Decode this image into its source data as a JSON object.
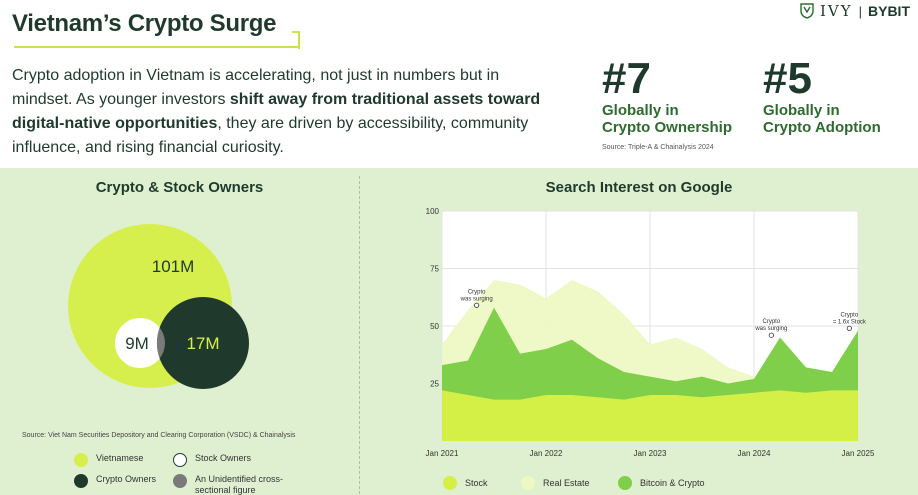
{
  "header": {
    "title": "Vietnam’s Crypto Surge",
    "intro_part1": "Crypto adoption in Vietnam is accelerating, not just in numbers but in mindset. As younger investors ",
    "intro_bold": "shift away from traditional assets toward digital-native opportunities",
    "intro_part2": ", they are driven by accessibility, community influence, and rising financial curiosity.",
    "logo_ivy": "IVY",
    "logo_sep": "|",
    "logo_bybit": "BYBIT"
  },
  "rankings": [
    {
      "rank": "#7",
      "line1": "Globally in",
      "line2": "Crypto Ownership"
    },
    {
      "rank": "#5",
      "line1": "Globally in",
      "line2": "Crypto Adoption"
    }
  ],
  "rank_source": "Source: Triple-A & Chainalysis 2024",
  "colors": {
    "lime": "#d7ef4c",
    "dark": "#1f3a2c",
    "white": "#ffffff",
    "gray": "#7a7a7a",
    "stock": "#d4ef45",
    "real_estate": "#eef8c4",
    "bitcoin": "#7fcf4a",
    "panel_bg": "#dff0d0"
  },
  "chart_data": [
    {
      "type": "venn",
      "title": "Crypto & Stock Owners",
      "sets": [
        {
          "name": "Vietnamese",
          "label": "101M",
          "value": 101
        },
        {
          "name": "Crypto Owners",
          "label": "17M",
          "value": 17
        },
        {
          "name": "Stock Owners",
          "label": "9M",
          "value": 9
        }
      ],
      "legend": [
        "Vietnamese",
        "Stock Owners",
        "Crypto Owners",
        "An Unidentified cross-sectional figure"
      ],
      "source": "Source: Viet Nam Securities Depository and Clearing Corporation (VSDC) & Chainalysis"
    },
    {
      "type": "area",
      "title": "Search Interest on Google",
      "ylim": [
        0,
        100
      ],
      "yticks": [
        25,
        50,
        75,
        100
      ],
      "xlim": [
        "2021-01",
        "2025-01"
      ],
      "xticks": [
        "Jan 2021",
        "Jan 2022",
        "Jan 2023",
        "Jan 2024",
        "Jan 2025"
      ],
      "x": [
        "2021-01",
        "2021-04",
        "2021-07",
        "2021-10",
        "2022-01",
        "2022-04",
        "2022-07",
        "2022-10",
        "2023-01",
        "2023-04",
        "2023-07",
        "2023-10",
        "2024-01",
        "2024-04",
        "2024-07",
        "2024-10",
        "2025-01"
      ],
      "series": [
        {
          "name": "Real Estate",
          "values": [
            42,
            57,
            70,
            68,
            62,
            70,
            65,
            55,
            42,
            45,
            40,
            32,
            28,
            26,
            28,
            30,
            28
          ]
        },
        {
          "name": "Bitcoin & Crypto",
          "values": [
            33,
            35,
            58,
            38,
            40,
            44,
            36,
            30,
            28,
            26,
            28,
            25,
            27,
            45,
            32,
            30,
            48
          ]
        },
        {
          "name": "Stock",
          "values": [
            22,
            20,
            18,
            18,
            20,
            20,
            19,
            18,
            20,
            20,
            19,
            20,
            21,
            22,
            21,
            22,
            22
          ]
        }
      ],
      "annotations": [
        {
          "text": "Crypto was surging",
          "x": "2021-05",
          "y": 59
        },
        {
          "text": "Crypto was surging",
          "x": "2024-03",
          "y": 46
        },
        {
          "text": "Crypto = 1.6x Stock",
          "x": "2024-12",
          "y": 49
        }
      ],
      "legend": [
        "Stock",
        "Real Estate",
        "Bitcoin & Crypto"
      ]
    }
  ]
}
